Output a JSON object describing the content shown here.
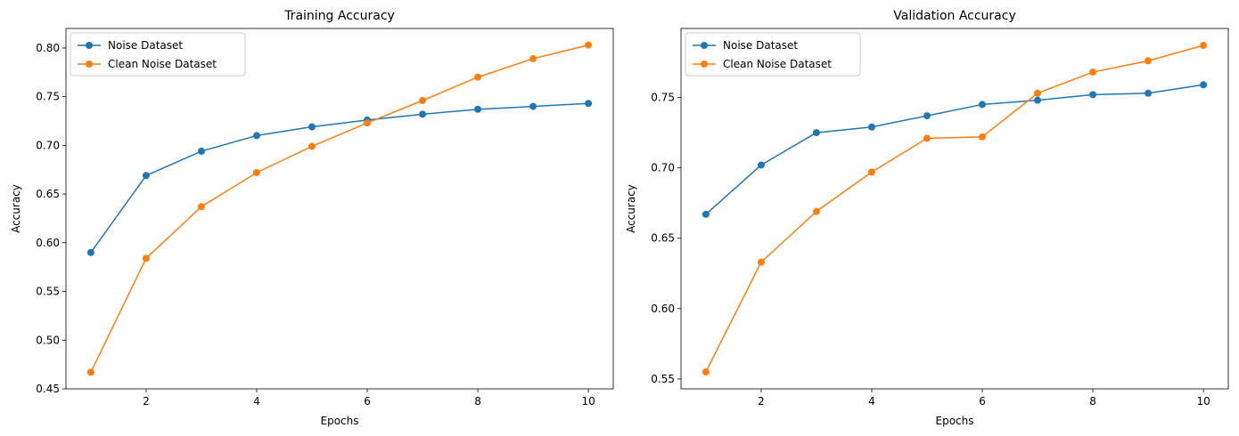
{
  "colors": {
    "series_0": "#1f77b4",
    "series_1": "#ff7f0e"
  },
  "chart_data": [
    {
      "type": "line",
      "title": "Training Accuracy",
      "xlabel": "Epochs",
      "ylabel": "Accuracy",
      "xlim": [
        0.55,
        10.45
      ],
      "ylim": [
        0.45,
        0.82
      ],
      "xticks": [
        2,
        4,
        6,
        8,
        10
      ],
      "yticks": [
        "0.45",
        "0.50",
        "0.55",
        "0.60",
        "0.65",
        "0.70",
        "0.75",
        "0.80"
      ],
      "grid": false,
      "legend": "upper-left",
      "x": [
        1,
        2,
        3,
        4,
        5,
        6,
        7,
        8,
        9,
        10
      ],
      "series": [
        {
          "name": "Noise Dataset",
          "color": "#1f77b4",
          "values": [
            0.59,
            0.669,
            0.694,
            0.71,
            0.719,
            0.726,
            0.732,
            0.737,
            0.74,
            0.743
          ]
        },
        {
          "name": "Clean Noise Dataset",
          "color": "#ff7f0e",
          "values": [
            0.467,
            0.584,
            0.637,
            0.672,
            0.699,
            0.723,
            0.746,
            0.77,
            0.789,
            0.803
          ]
        }
      ]
    },
    {
      "type": "line",
      "title": "Validation Accuracy",
      "xlabel": "Epochs",
      "ylabel": "Accuracy",
      "xlim": [
        0.55,
        10.45
      ],
      "ylim": [
        0.543,
        0.799
      ],
      "xticks": [
        2,
        4,
        6,
        8,
        10
      ],
      "yticks": [
        "0.55",
        "0.60",
        "0.65",
        "0.70",
        "0.75"
      ],
      "grid": false,
      "legend": "upper-left",
      "x": [
        1,
        2,
        3,
        4,
        5,
        6,
        7,
        8,
        9,
        10
      ],
      "series": [
        {
          "name": "Noise Dataset",
          "color": "#1f77b4",
          "values": [
            0.667,
            0.702,
            0.725,
            0.729,
            0.737,
            0.745,
            0.748,
            0.752,
            0.753,
            0.759
          ]
        },
        {
          "name": "Clean Noise Dataset",
          "color": "#ff7f0e",
          "values": [
            0.555,
            0.633,
            0.669,
            0.697,
            0.721,
            0.722,
            0.753,
            0.768,
            0.776,
            0.787
          ]
        }
      ]
    }
  ]
}
